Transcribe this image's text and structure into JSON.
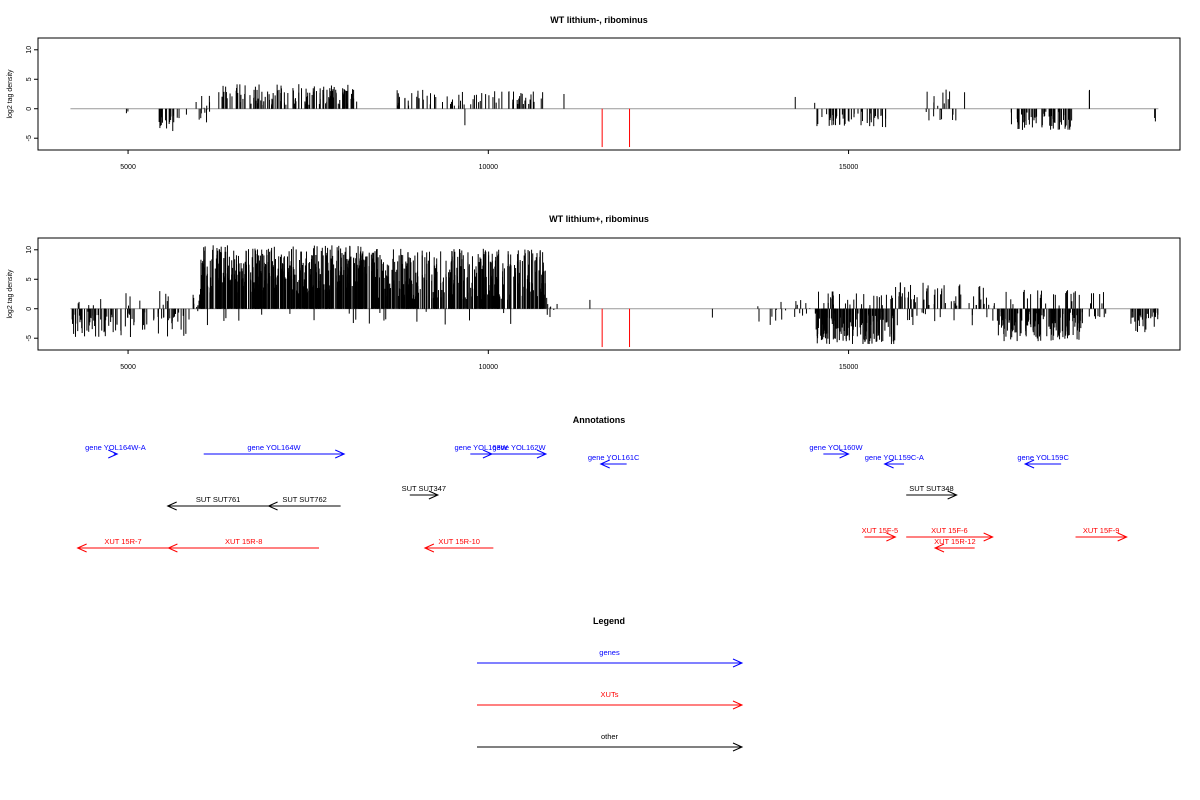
{
  "chart_data": [
    {
      "type": "bar",
      "title": "WT lithium-, ribominus",
      "ylabel": "log2 tag density",
      "xlim": [
        3750,
        19600
      ],
      "ylim": [
        -7,
        12
      ],
      "x_ticks": [
        5000,
        10000,
        15000
      ],
      "y_ticks": [
        -5,
        0,
        5,
        10
      ],
      "x_ticks_labels": [
        "5000",
        "10000",
        "15000"
      ],
      "y_ticks_labels": [
        "-5",
        "0",
        "5",
        "10"
      ],
      "baseline": [
        4200,
        19300
      ],
      "highlight_color": "#ff0000",
      "highlight_positions": [
        11580,
        11960
      ],
      "highlight_value": -6.5,
      "segments": [
        {
          "start": 4950,
          "end": 5000,
          "count": 2,
          "seed": 1,
          "min": -1,
          "max": -0.3
        },
        {
          "start": 5420,
          "end": 5720,
          "count": 18,
          "seed": 2,
          "min": -3.8,
          "max": -0.5
        },
        {
          "start": 5800,
          "end": 5820,
          "count": 1,
          "seed": 3,
          "min": -1,
          "max": -1
        },
        {
          "start": 5930,
          "end": 6200,
          "count": 14,
          "seed": 4,
          "min": -2.5,
          "max": 2.5
        },
        {
          "start": 6250,
          "end": 8200,
          "count": 130,
          "seed": 5,
          "min": 0.5,
          "max": 4.2
        },
        {
          "start": 8730,
          "end": 9950,
          "count": 40,
          "seed": 6,
          "min": 0.5,
          "max": 3.2
        },
        {
          "start": 9650,
          "end": 9700,
          "count": 1,
          "seed": 7,
          "min": -2.8,
          "max": -2.8
        },
        {
          "start": 9950,
          "end": 10800,
          "count": 30,
          "seed": 8,
          "min": 0.5,
          "max": 3.2
        },
        {
          "start": 11040,
          "end": 11060,
          "count": 1,
          "seed": 9,
          "min": 2.5,
          "max": 2.5
        },
        {
          "start": 14250,
          "end": 14270,
          "count": 1,
          "seed": 10,
          "min": 2,
          "max": 2
        },
        {
          "start": 14520,
          "end": 14540,
          "count": 1,
          "seed": 11,
          "min": 1,
          "max": 1
        },
        {
          "start": 14560,
          "end": 15550,
          "count": 50,
          "seed": 12,
          "min": -3.2,
          "max": -0.5
        },
        {
          "start": 16050,
          "end": 16500,
          "count": 20,
          "seed": 13,
          "min": -2.5,
          "max": 3.4
        },
        {
          "start": 16600,
          "end": 16620,
          "count": 1,
          "seed": 14,
          "min": 2.8,
          "max": 2.8
        },
        {
          "start": 17250,
          "end": 18100,
          "count": 60,
          "seed": 15,
          "min": -3.6,
          "max": -0.5
        },
        {
          "start": 18340,
          "end": 18360,
          "count": 2,
          "seed": 16,
          "min": 3,
          "max": 3.2
        },
        {
          "start": 19240,
          "end": 19260,
          "count": 2,
          "seed": 17,
          "min": -2.2,
          "max": -1.5
        }
      ]
    },
    {
      "type": "bar",
      "title": "WT lithium+, ribominus",
      "ylabel": "log2 tag density",
      "xlim": [
        3750,
        19600
      ],
      "ylim": [
        -7,
        12
      ],
      "x_ticks": [
        5000,
        10000,
        15000
      ],
      "y_ticks": [
        -5,
        0,
        5,
        10
      ],
      "x_ticks_labels": [
        "5000",
        "10000",
        "15000"
      ],
      "y_ticks_labels": [
        "-5",
        "0",
        "5",
        "10"
      ],
      "baseline": [
        4200,
        19300
      ],
      "highlight_color": "#ff0000",
      "highlight_positions": [
        11580,
        11960
      ],
      "highlight_value": -6.5,
      "segments": [
        {
          "start": 4200,
          "end": 5850,
          "count": 90,
          "seed": 21,
          "min": -4.8,
          "max": -0.5
        },
        {
          "start": 4300,
          "end": 5850,
          "count": 14,
          "seed": 22,
          "min": 0.5,
          "max": 3
        },
        {
          "start": 5900,
          "end": 6000,
          "count": 8,
          "seed": 23,
          "min": -3.5,
          "max": 3.5
        },
        {
          "start": 6000,
          "end": 8300,
          "count": 420,
          "seed": 24,
          "min": 2.5,
          "max": 10.8
        },
        {
          "start": 8300,
          "end": 10800,
          "count": 360,
          "seed": 25,
          "min": 1.5,
          "max": 10.2
        },
        {
          "start": 6000,
          "end": 10800,
          "count": 20,
          "seed": 26,
          "min": -3,
          "max": -0.5
        },
        {
          "start": 10800,
          "end": 11000,
          "count": 8,
          "seed": 27,
          "min": -1.5,
          "max": 2
        },
        {
          "start": 11400,
          "end": 11420,
          "count": 1,
          "seed": 28,
          "min": 1.5,
          "max": 1.5
        },
        {
          "start": 13100,
          "end": 13120,
          "count": 1,
          "seed": 29,
          "min": -1.5,
          "max": -1.5
        },
        {
          "start": 13700,
          "end": 14000,
          "count": 6,
          "seed": 30,
          "min": -3,
          "max": 1
        },
        {
          "start": 14050,
          "end": 14550,
          "count": 16,
          "seed": 31,
          "min": -2,
          "max": 2
        },
        {
          "start": 14550,
          "end": 15650,
          "count": 160,
          "seed": 32,
          "min": -6,
          "max": -0.5
        },
        {
          "start": 14550,
          "end": 15650,
          "count": 30,
          "seed": 33,
          "min": 0.5,
          "max": 3
        },
        {
          "start": 15650,
          "end": 17050,
          "count": 60,
          "seed": 34,
          "min": 0.5,
          "max": 4.5
        },
        {
          "start": 15650,
          "end": 17050,
          "count": 16,
          "seed": 35,
          "min": -3,
          "max": -0.5
        },
        {
          "start": 17050,
          "end": 18250,
          "count": 150,
          "seed": 36,
          "min": -5.5,
          "max": -0.5
        },
        {
          "start": 17050,
          "end": 18600,
          "count": 30,
          "seed": 37,
          "min": 0.5,
          "max": 3.2
        },
        {
          "start": 18250,
          "end": 18600,
          "count": 8,
          "seed": 38,
          "min": -2,
          "max": -0.5
        },
        {
          "start": 18900,
          "end": 19300,
          "count": 30,
          "seed": 39,
          "min": -4,
          "max": -0.5
        }
      ]
    },
    {
      "type": "annotation-track",
      "title": "Annotations",
      "xlim": [
        3750,
        19600
      ],
      "features": [
        {
          "label": "gene YOL164W-A",
          "kind": "gene",
          "start": 4800,
          "end": 4850,
          "strand": "+",
          "row": 0
        },
        {
          "label": "gene YOL164W",
          "kind": "gene",
          "start": 6050,
          "end": 8000,
          "strand": "+",
          "row": 0
        },
        {
          "label": "gene YOL163W",
          "kind": "gene",
          "start": 9750,
          "end": 10050,
          "strand": "+",
          "row": 0
        },
        {
          "label": "gene YOL162W",
          "kind": "gene",
          "start": 10050,
          "end": 10800,
          "strand": "+",
          "row": 0
        },
        {
          "label": "gene YOL161C",
          "kind": "gene",
          "start": 11560,
          "end": 11920,
          "strand": "-",
          "row": 1
        },
        {
          "label": "gene YOL160W",
          "kind": "gene",
          "start": 14650,
          "end": 15000,
          "strand": "+",
          "row": 0
        },
        {
          "label": "gene YOL159C-A",
          "kind": "gene",
          "start": 15500,
          "end": 15770,
          "strand": "-",
          "row": 1
        },
        {
          "label": "gene YOL159C",
          "kind": "gene",
          "start": 17450,
          "end": 17950,
          "strand": "-",
          "row": 1
        },
        {
          "label": "SUT SUT761",
          "kind": "other",
          "start": 5550,
          "end": 6950,
          "strand": "-",
          "row": 3
        },
        {
          "label": "SUT SUT762",
          "kind": "other",
          "start": 6950,
          "end": 7950,
          "strand": "-",
          "row": 3
        },
        {
          "label": "SUT SUT347",
          "kind": "other",
          "start": 8910,
          "end": 9300,
          "strand": "+",
          "row": 2
        },
        {
          "label": "SUT SUT348",
          "kind": "other",
          "start": 15800,
          "end": 16500,
          "strand": "+",
          "row": 2
        },
        {
          "label": "XUT 15R-7",
          "kind": "XUT",
          "start": 4300,
          "end": 5560,
          "strand": "-",
          "row": 5
        },
        {
          "label": "XUT 15R-8",
          "kind": "XUT",
          "start": 5560,
          "end": 7650,
          "strand": "-",
          "row": 5
        },
        {
          "label": "XUT 15R-10",
          "kind": "XUT",
          "start": 9120,
          "end": 10070,
          "strand": "-",
          "row": 5
        },
        {
          "label": "XUT 15F-5",
          "kind": "XUT",
          "start": 15220,
          "end": 15650,
          "strand": "+",
          "row": 4
        },
        {
          "label": "XUT 15F-6",
          "kind": "XUT",
          "start": 15800,
          "end": 17000,
          "strand": "+",
          "row": 4
        },
        {
          "label": "XUT 15R-12",
          "kind": "XUT",
          "start": 16200,
          "end": 16750,
          "strand": "-",
          "row": 5
        },
        {
          "label": "XUT 15F-9",
          "kind": "XUT",
          "start": 18150,
          "end": 18860,
          "strand": "+",
          "row": 4
        }
      ]
    },
    {
      "type": "legend",
      "title": "Legend",
      "entries": [
        {
          "label": "genes",
          "color": "#0000ff"
        },
        {
          "label": "XUTs",
          "color": "#ff0000"
        },
        {
          "label": "other",
          "color": "#000000"
        }
      ]
    }
  ],
  "colors": {
    "gene": "#0000ff",
    "XUT": "#ff0000",
    "other": "#000000",
    "baseline": "#999999"
  }
}
